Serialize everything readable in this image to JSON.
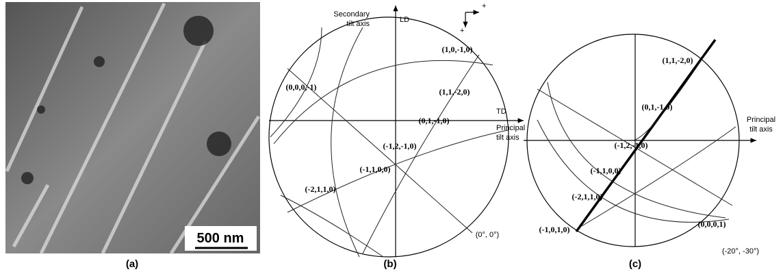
{
  "panels": [
    {
      "caption": "(a)",
      "scale_bar": "500 nm"
    },
    {
      "caption": "(b)",
      "secondary_axis": [
        "Secondary",
        "tilt axis"
      ],
      "ld": "LD",
      "td": "TD",
      "principal_axis": [
        "Principal",
        "tilt axis"
      ],
      "tilt": "(0°, 0°)",
      "poles": [
        "(1,0,-1,0)",
        "(0,0,0,-1)",
        "(1,1,-2,0)",
        "(0,1,-1,0)",
        "(-1,2,-1,0)",
        "(-1,1,0,0)",
        "(-2,1,1,0)"
      ]
    },
    {
      "caption": "(c)",
      "principal_axis": [
        "Principal",
        "tilt axis"
      ],
      "tilt": "(-20°, -30°)",
      "poles": [
        "(1,1,-2,0)",
        "(0,1,-1,0)",
        "(-1,2,-1,0)",
        "(-1,1,0,0)",
        "(-2,1,1,0)",
        "(0,0,0,1)",
        "(-1,0,1,0)"
      ]
    }
  ]
}
